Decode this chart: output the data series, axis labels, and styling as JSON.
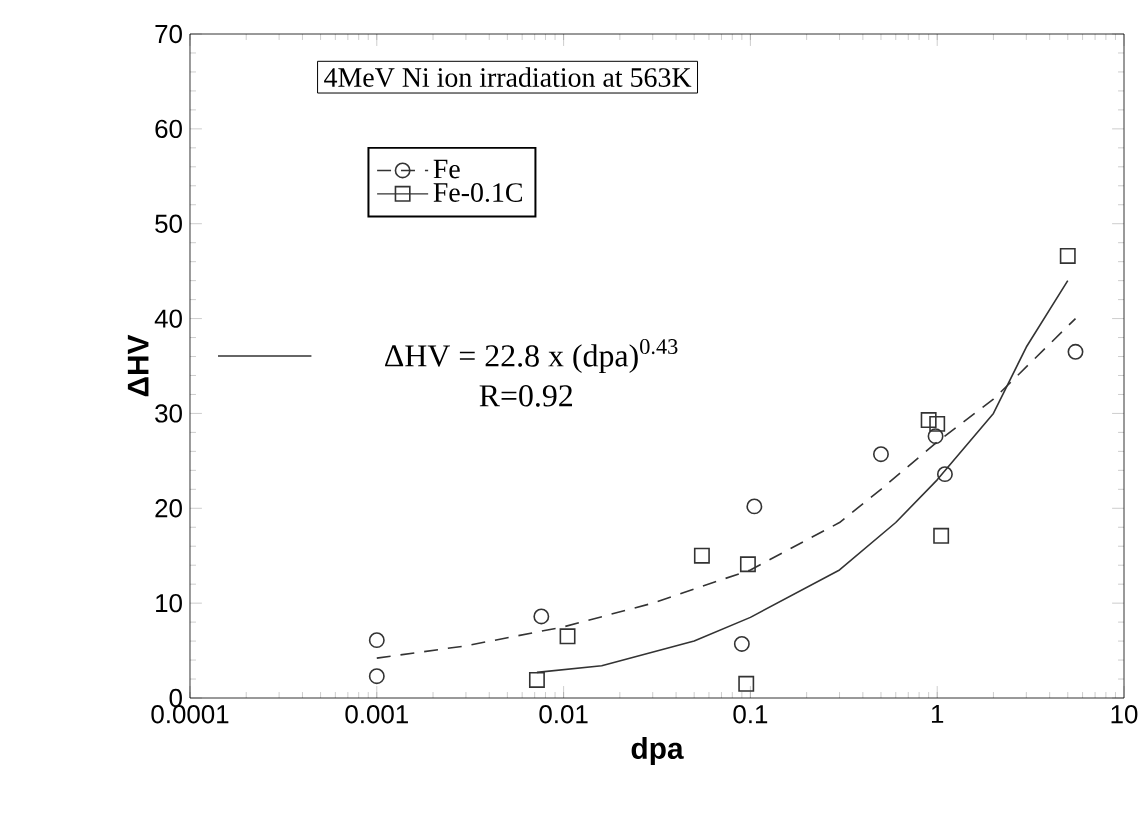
{
  "chart_data": {
    "type": "scatter",
    "xlabel": "dpa",
    "ylabel": "ΔHV",
    "annotations": [
      "4MeV Ni ion irradiation at 563K",
      "R=0.92"
    ],
    "log": "x",
    "xlim": [
      0.0001,
      10
    ],
    "xticks": [
      0.0001,
      0.001,
      0.01,
      0.1,
      1,
      10
    ],
    "ylim": [
      0,
      70
    ],
    "yticks": [
      0,
      10,
      20,
      30,
      40,
      50,
      60,
      70
    ],
    "grid": false,
    "legend": "top left",
    "series": [
      {
        "name": "Fe",
        "marker": "circle",
        "line_style": "dashed",
        "color": "#333333",
        "x": [
          0.001,
          0.001,
          0.0076,
          0.09,
          0.105,
          0.5,
          0.98,
          1.1,
          5.5
        ],
        "values": [
          6.1,
          2.3,
          8.6,
          5.7,
          20.2,
          25.7,
          27.6,
          23.6,
          36.5
        ]
      },
      {
        "name": "Fe-0.1C",
        "marker": "square",
        "line_style": "solid",
        "color": "#333333",
        "x": [
          0.0072,
          0.0105,
          0.055,
          0.095,
          0.097,
          0.9,
          1.0,
          1.05,
          5.0
        ],
        "values": [
          1.9,
          6.5,
          15,
          1.5,
          14.1,
          29.3,
          28.9,
          17.1,
          46.6
        ]
      },
      {
        "type": "line",
        "line_style": "dashed",
        "color": "#333333",
        "x": [
          0.001,
          0.003,
          0.01,
          0.03,
          0.1,
          0.3,
          0.5,
          1,
          2,
          5.5
        ],
        "values": [
          4.2,
          5.5,
          7.5,
          10,
          13.5,
          18.5,
          22,
          27,
          31.5,
          40
        ]
      },
      {
        "name": "ΔHV = 22.8 x (dpa)$^{0.43}$",
        "type": "line",
        "line_style": "solid",
        "color": "#333333",
        "x": [
          0.0072,
          0.016,
          0.05,
          0.1,
          0.3,
          0.6,
          1,
          2,
          3,
          5
        ],
        "values": [
          2.7,
          3.4,
          6,
          8.5,
          13.5,
          18.5,
          23,
          30,
          37,
          44
        ]
      }
    ]
  }
}
